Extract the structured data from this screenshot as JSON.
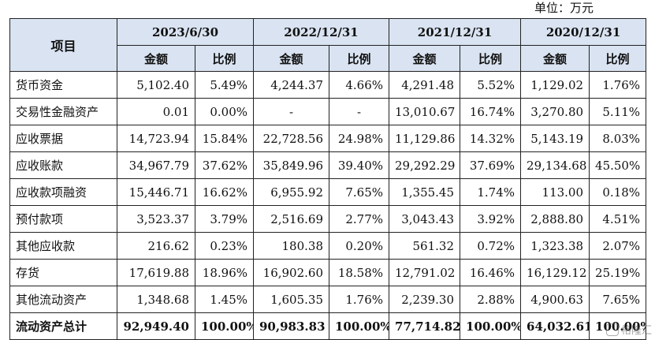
{
  "unit_label": "单位：万元",
  "header": {
    "item": "项目",
    "periods": [
      "2023/6/30",
      "2022/12/31",
      "2021/12/31",
      "2020/12/31"
    ],
    "amount": "金额",
    "ratio": "比例"
  },
  "rows": [
    {
      "label": "货币资金",
      "cells": [
        "5,102.40",
        "5.49%",
        "4,244.37",
        "4.66%",
        "4,291.48",
        "5.52%",
        "1,129.02",
        "1.76%"
      ]
    },
    {
      "label": "交易性金融资产",
      "cells": [
        "0.01",
        "0.00%",
        "-",
        "-",
        "13,010.67",
        "16.74%",
        "3,270.80",
        "5.11%"
      ]
    },
    {
      "label": "应收票据",
      "cells": [
        "14,723.94",
        "15.84%",
        "22,728.56",
        "24.98%",
        "11,129.86",
        "14.32%",
        "5,143.19",
        "8.03%"
      ]
    },
    {
      "label": "应收账款",
      "cells": [
        "34,967.79",
        "37.62%",
        "35,849.96",
        "39.40%",
        "29,292.29",
        "37.69%",
        "29,134.68",
        "45.50%"
      ]
    },
    {
      "label": "应收款项融资",
      "cells": [
        "15,446.71",
        "16.62%",
        "6,955.92",
        "7.65%",
        "1,355.45",
        "1.74%",
        "113.00",
        "0.18%"
      ]
    },
    {
      "label": "预付款项",
      "cells": [
        "3,523.37",
        "3.79%",
        "2,516.69",
        "2.77%",
        "3,043.43",
        "3.92%",
        "2,888.80",
        "4.51%"
      ]
    },
    {
      "label": "其他应收款",
      "cells": [
        "216.62",
        "0.23%",
        "180.38",
        "0.20%",
        "561.32",
        "0.72%",
        "1,323.38",
        "2.07%"
      ]
    },
    {
      "label": "存货",
      "cells": [
        "17,619.88",
        "18.96%",
        "16,902.60",
        "18.58%",
        "12,791.02",
        "16.46%",
        "16,129.12",
        "25.19%"
      ]
    },
    {
      "label": "其他流动资产",
      "cells": [
        "1,348.68",
        "1.45%",
        "1,605.35",
        "1.76%",
        "2,239.30",
        "2.88%",
        "4,900.63",
        "7.65%"
      ]
    },
    {
      "label": "流动资产总计",
      "cells": [
        "92,949.40",
        "100.00%",
        "90,983.83",
        "100.00%",
        "77,714.82",
        "100.00%",
        "64,032.61",
        "100.00%"
      ]
    }
  ],
  "watermark": {
    "text": "格隆汇",
    "icon": "watermark-logo-icon"
  }
}
